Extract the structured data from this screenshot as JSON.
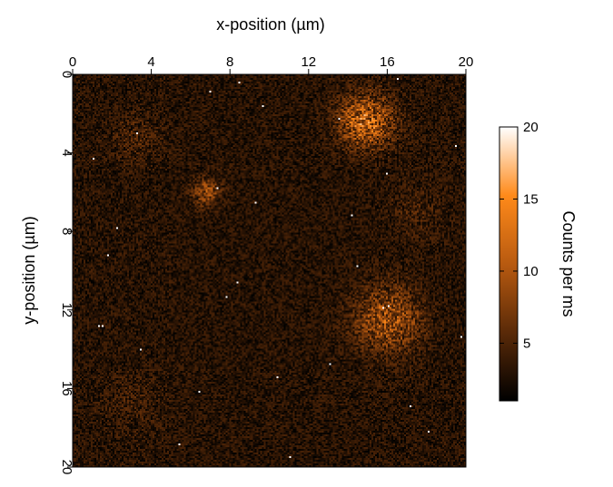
{
  "chart_data": {
    "type": "heatmap",
    "xlabel": "x-position (µm)",
    "ylabel": "y-position (µm)",
    "xlim": [
      0,
      20
    ],
    "ylim": [
      0,
      20
    ],
    "x_ticks": [
      "0",
      "4",
      "8",
      "12",
      "16",
      "20"
    ],
    "y_ticks": [
      "0",
      "4",
      "8",
      "12",
      "16",
      "20"
    ],
    "colorbar": {
      "label": "Counts per ms",
      "range": [
        1,
        20
      ],
      "ticks": [
        "5",
        "10",
        "15",
        "20"
      ],
      "colors": [
        "#000000",
        "#5a2a08",
        "#b85a10",
        "#ff8a1a",
        "#ffffff"
      ]
    },
    "background_counts": 3,
    "bright_regions": [
      {
        "x": 14.9,
        "y": 2.4,
        "radius": 1.3,
        "peak": 8
      },
      {
        "x": 16.0,
        "y": 12.5,
        "radius": 1.6,
        "peak": 6
      },
      {
        "x": 6.8,
        "y": 6.0,
        "radius": 0.7,
        "peak": 5
      },
      {
        "x": 3.2,
        "y": 3.2,
        "radius": 1.2,
        "peak": 1.5
      },
      {
        "x": 17.5,
        "y": 7.0,
        "radius": 1.4,
        "peak": 1.3
      },
      {
        "x": 3.0,
        "y": 16.8,
        "radius": 1.5,
        "peak": 1.0
      }
    ],
    "hot_pixels": [
      [
        7.0,
        0.9
      ],
      [
        9.7,
        1.6
      ],
      [
        3.3,
        3.0
      ],
      [
        1.1,
        4.3
      ],
      [
        13.6,
        2.3
      ],
      [
        16.5,
        0.2
      ],
      [
        8.5,
        0.4
      ],
      [
        7.4,
        5.8
      ],
      [
        9.3,
        6.5
      ],
      [
        16.0,
        5.0
      ],
      [
        19.5,
        3.7
      ],
      [
        14.2,
        7.2
      ],
      [
        2.3,
        7.8
      ],
      [
        1.8,
        9.2
      ],
      [
        14.5,
        9.8
      ],
      [
        8.4,
        10.6
      ],
      [
        7.8,
        11.3
      ],
      [
        15.8,
        11.9
      ],
      [
        16.1,
        11.8
      ],
      [
        1.3,
        12.8
      ],
      [
        1.5,
        12.8
      ],
      [
        19.8,
        13.4
      ],
      [
        3.5,
        14.0
      ],
      [
        13.1,
        14.8
      ],
      [
        10.4,
        15.4
      ],
      [
        6.4,
        16.2
      ],
      [
        17.2,
        16.9
      ],
      [
        18.1,
        18.2
      ],
      [
        5.4,
        18.8
      ],
      [
        11.1,
        19.5
      ]
    ]
  }
}
